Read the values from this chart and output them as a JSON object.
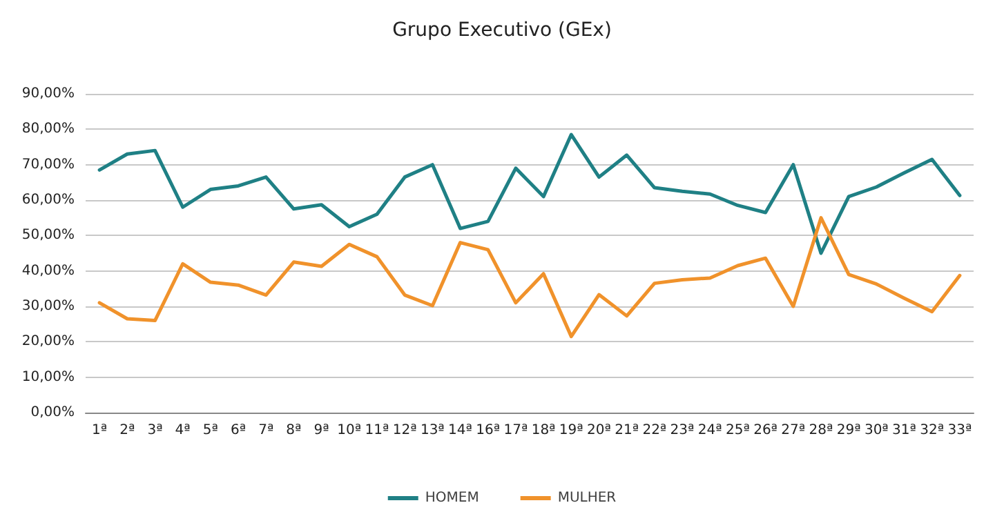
{
  "chart_data": {
    "type": "line",
    "title": "Grupo Executivo (GEx)",
    "categories": [
      "1ª",
      "2ª",
      "3ª",
      "4ª",
      "5ª",
      "6ª",
      "7ª",
      "8ª",
      "9ª",
      "10ª",
      "11ª",
      "12ª",
      "13ª",
      "14ª",
      "16ª",
      "17ª",
      "18ª",
      "19ª",
      "20ª",
      "21ª",
      "22ª",
      "23ª",
      "24ª",
      "25ª",
      "26ª",
      "27ª",
      "28ª",
      "29ª",
      "30ª",
      "31ª",
      "32ª",
      "33ª"
    ],
    "series": [
      {
        "name": "HOMEM",
        "color": "#1f8085",
        "values": [
          68.5,
          73,
          74,
          58,
          63,
          64,
          66.5,
          57.5,
          58.7,
          52.5,
          56,
          66.5,
          70,
          52,
          54,
          69,
          61,
          78.5,
          66.5,
          72.7,
          63.5,
          62.5,
          61.7,
          58.5,
          56.5,
          70,
          45,
          61,
          63.7,
          67.7,
          71.5,
          61.3
        ]
      },
      {
        "name": "MULHER",
        "color": "#f0922b",
        "values": [
          31,
          26.5,
          26,
          42,
          36.8,
          36,
          33.2,
          42.5,
          41.3,
          47.5,
          44,
          33.2,
          30.2,
          48,
          46,
          31,
          39.2,
          21.5,
          33.3,
          27.3,
          36.5,
          37.5,
          38,
          41.5,
          43.6,
          30,
          55,
          39,
          36.3,
          32.3,
          28.5,
          38.7
        ]
      }
    ],
    "ylim": [
      0,
      90
    ],
    "yticks": [
      {
        "value": 0,
        "label": "0,00%"
      },
      {
        "value": 10,
        "label": "10,00%"
      },
      {
        "value": 20,
        "label": "20,00%"
      },
      {
        "value": 30,
        "label": "30,00%"
      },
      {
        "value": 40,
        "label": "40,00%"
      },
      {
        "value": 50,
        "label": "50,00%"
      },
      {
        "value": 60,
        "label": "60,00%"
      },
      {
        "value": 70,
        "label": "70,00%"
      },
      {
        "value": 80,
        "label": "80,00%"
      },
      {
        "value": 90,
        "label": "90,00%"
      }
    ],
    "grid": "y",
    "legend": "bottom",
    "marker": "none",
    "line_style": "solid"
  }
}
